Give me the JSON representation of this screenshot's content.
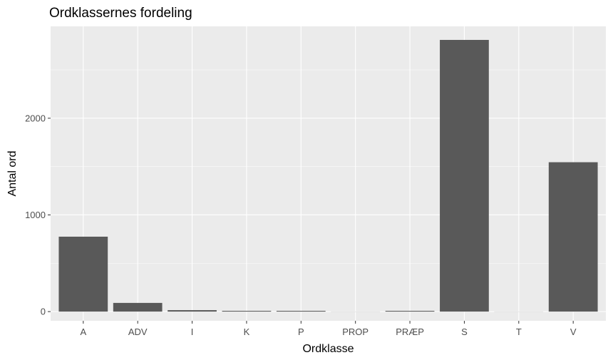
{
  "chart_data": {
    "type": "bar",
    "title": "Ordklassernes fordeling",
    "xlabel": "Ordklasse",
    "ylabel": "Antal ord",
    "categories": [
      "A",
      "ADV",
      "I",
      "K",
      "P",
      "PROP",
      "PRÆP",
      "S",
      "T",
      "V"
    ],
    "values": [
      775,
      90,
      15,
      8,
      8,
      1,
      8,
      2810,
      1,
      1545
    ],
    "ylim": [
      -95,
      2950
    ],
    "yticks": [
      0,
      1000,
      2000
    ],
    "ytick_labels": [
      "0",
      "1000",
      "2000"
    ],
    "grid": true,
    "bar_color": "#595959",
    "panel_color": "#ebebeb"
  }
}
